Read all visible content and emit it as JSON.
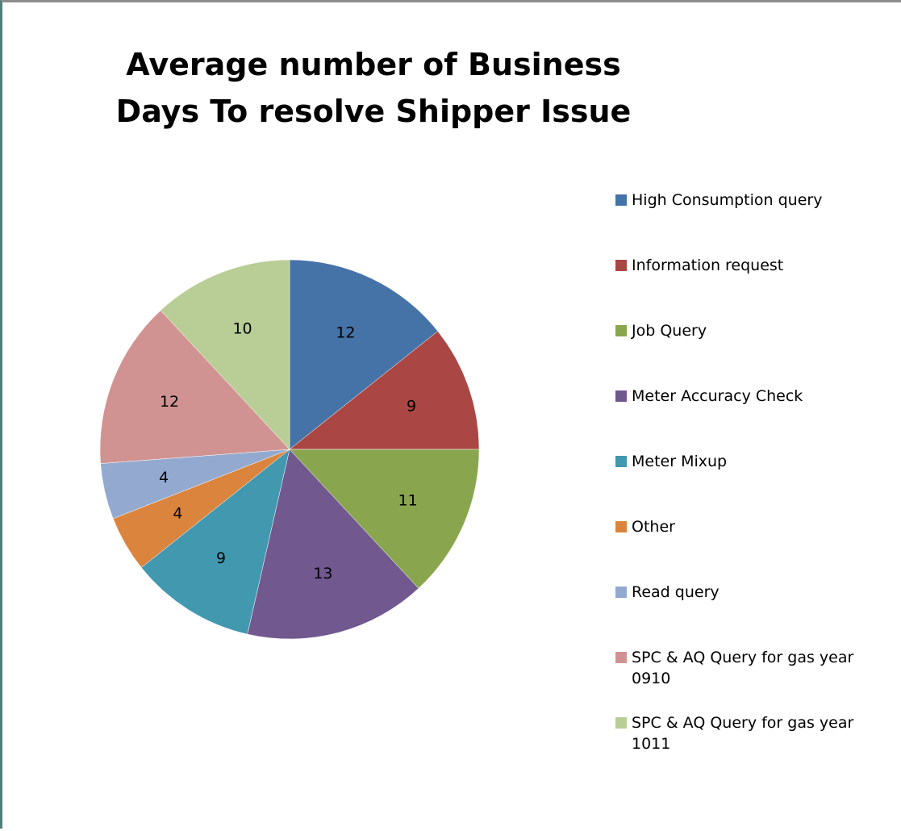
{
  "chart_data": {
    "type": "pie",
    "title": "Average number of Business Days To resolve Shipper Issue",
    "categories": [
      "High Consumption query",
      "Information request",
      "Job Query",
      "Meter Accuracy Check",
      "Meter Mixup",
      "Other",
      "Read query",
      "SPC & AQ Query for gas year 0910",
      "SPC & AQ Query for gas year 1011"
    ],
    "values": [
      12,
      9,
      11,
      13,
      9,
      4,
      4,
      12,
      10
    ],
    "colors": [
      "#4572a7",
      "#aa4643",
      "#89a54e",
      "#71588f",
      "#4198af",
      "#db843d",
      "#93a9cf",
      "#d19392",
      "#b9cd96"
    ],
    "legend_position": "right",
    "grid": false
  }
}
